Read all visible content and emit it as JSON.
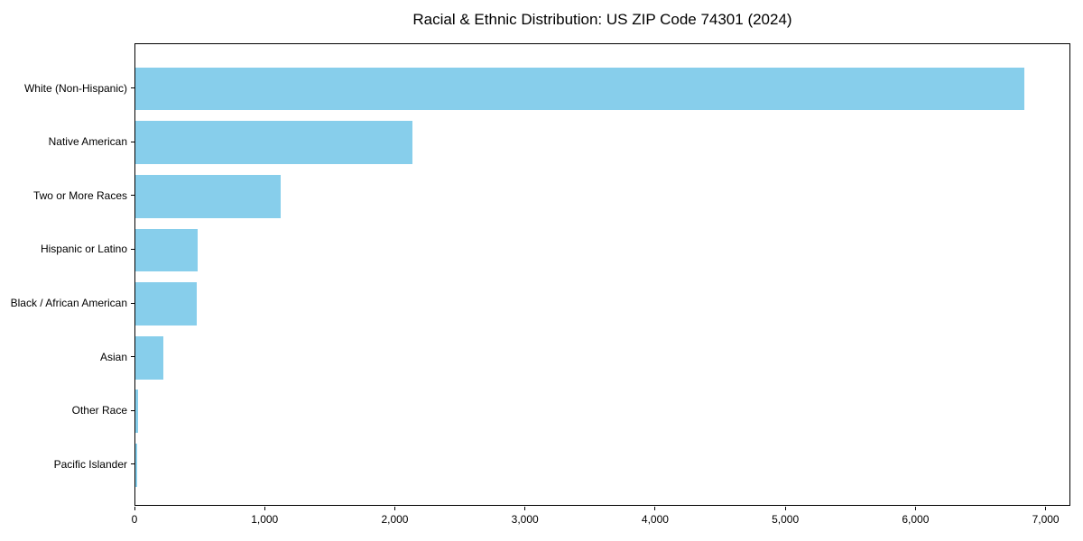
{
  "title": "Racial & Ethnic Distribution: US ZIP Code 74301 (2024)",
  "colors": {
    "bar": "#87CEEB",
    "background": "#ffffff",
    "spine": "#000000",
    "text": "#000000"
  },
  "chart_data": {
    "type": "bar",
    "orientation": "horizontal",
    "title": "Racial & Ethnic Distribution: US ZIP Code 74301 (2024)",
    "xlabel": "",
    "ylabel": "",
    "categories": [
      "White (Non-Hispanic)",
      "Native American",
      "Two or More Races",
      "Hispanic or Latino",
      "Black / African American",
      "Asian",
      "Other Race",
      "Pacific Islander"
    ],
    "values": [
      6845,
      2130,
      1115,
      480,
      470,
      215,
      18,
      15
    ],
    "bar_color": "#87CEEB",
    "xlim": [
      0,
      7190
    ],
    "xticks": [
      0,
      1000,
      2000,
      3000,
      4000,
      5000,
      6000,
      7000
    ],
    "xtick_labels": [
      "0",
      "1,000",
      "2,000",
      "3,000",
      "4,000",
      "5,000",
      "6,000",
      "7,000"
    ],
    "grid": false,
    "legend": null,
    "frame": "full-box"
  }
}
